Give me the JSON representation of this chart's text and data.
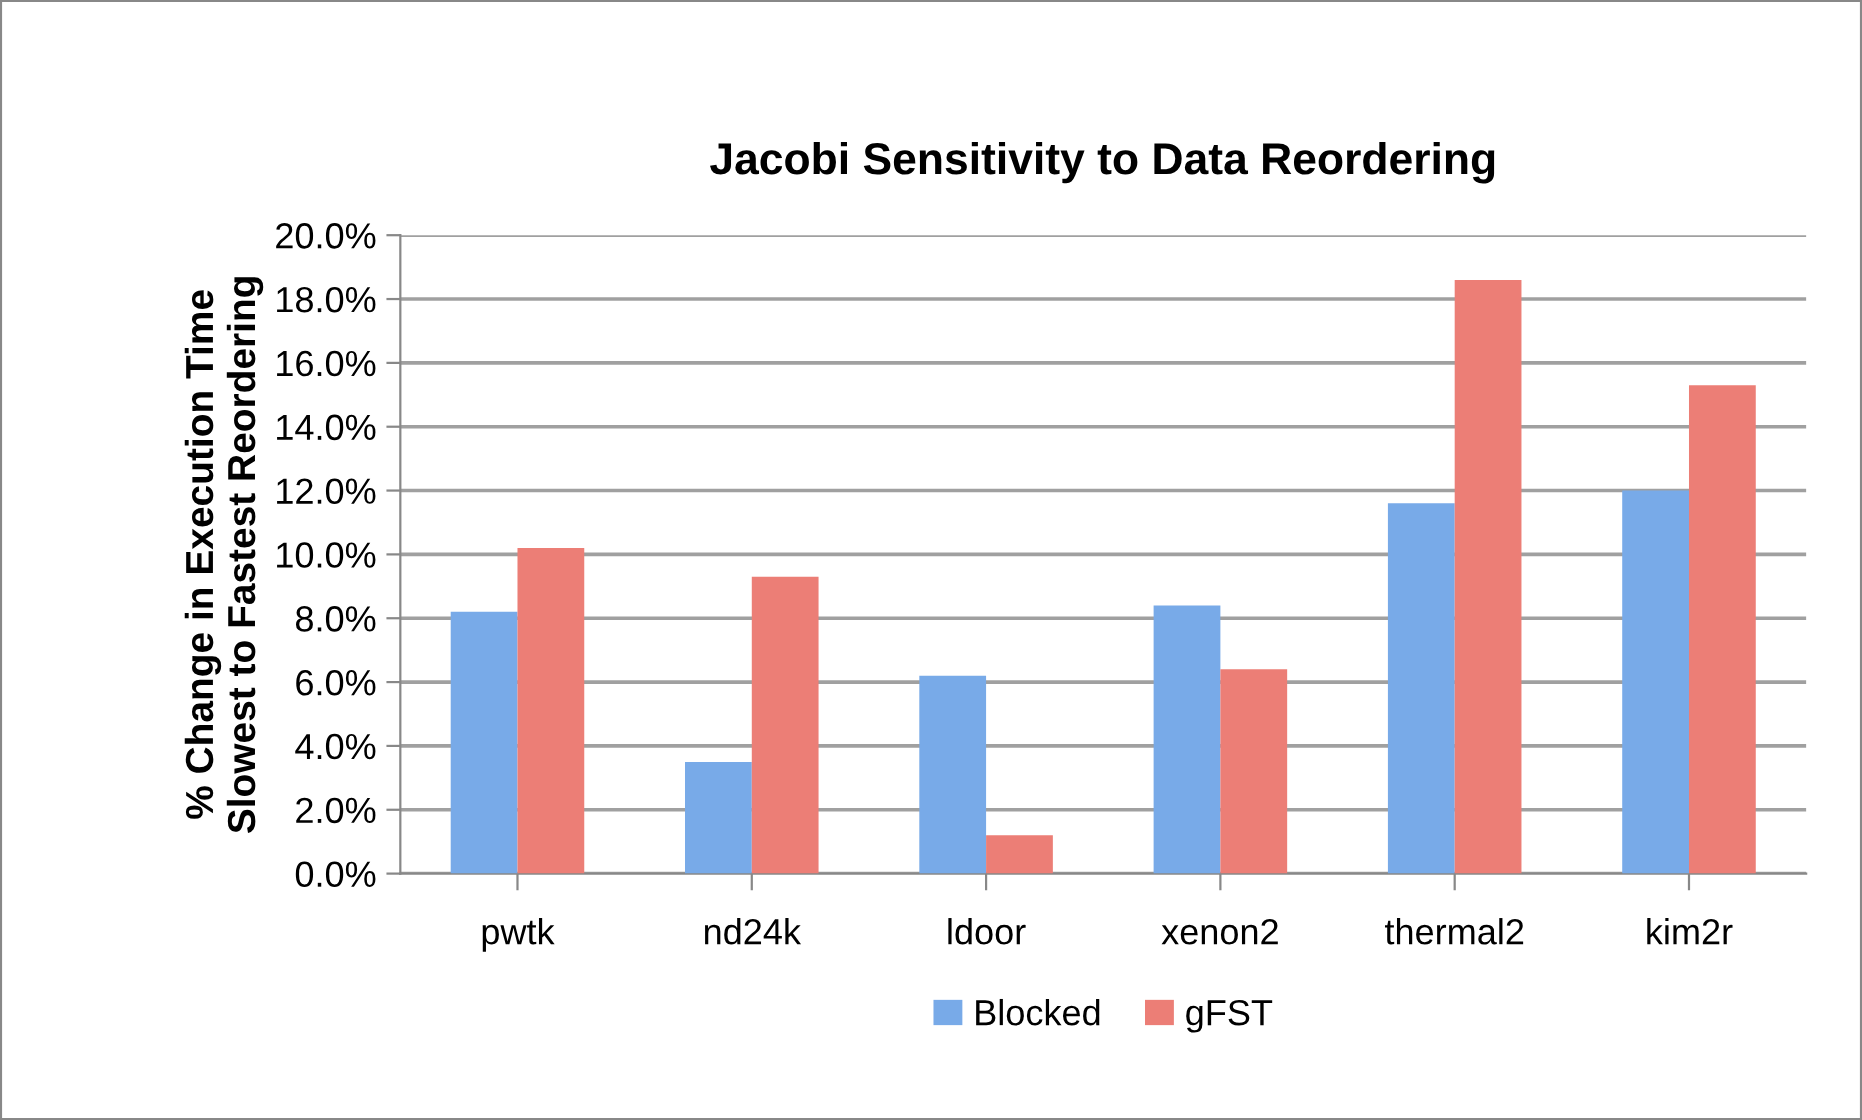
{
  "chart_data": {
    "type": "bar",
    "title": "Jacobi Sensitivity to Data Reordering",
    "ylabel": "% Change in Execution Time\nSlowest to Fastest Reordering",
    "categories": [
      "pwtk",
      "nd24k",
      "ldoor",
      "xenon2",
      "thermal2",
      "kim2r"
    ],
    "series": [
      {
        "name": "Blocked",
        "color": "#78aae8",
        "values": [
          8.2,
          3.5,
          6.2,
          8.4,
          11.6,
          12.0
        ]
      },
      {
        "name": "gFST",
        "color": "#ec7e76",
        "values": [
          10.2,
          9.3,
          1.2,
          6.4,
          18.6,
          15.3
        ]
      }
    ],
    "ylim": [
      0,
      20
    ],
    "yticks": [
      {
        "value": 0,
        "label": "0.0%"
      },
      {
        "value": 2,
        "label": "2.0%"
      },
      {
        "value": 4,
        "label": "4.0%"
      },
      {
        "value": 6,
        "label": "6.0%"
      },
      {
        "value": 8,
        "label": "8.0%"
      },
      {
        "value": 10,
        "label": "10.0%"
      },
      {
        "value": 12,
        "label": "12.0%"
      },
      {
        "value": 14,
        "label": "14.0%"
      },
      {
        "value": 16,
        "label": "16.0%"
      },
      {
        "value": 18,
        "label": "18.0%"
      },
      {
        "value": 20,
        "label": "20.0%"
      }
    ],
    "grid": "y",
    "legend": "bottom"
  }
}
